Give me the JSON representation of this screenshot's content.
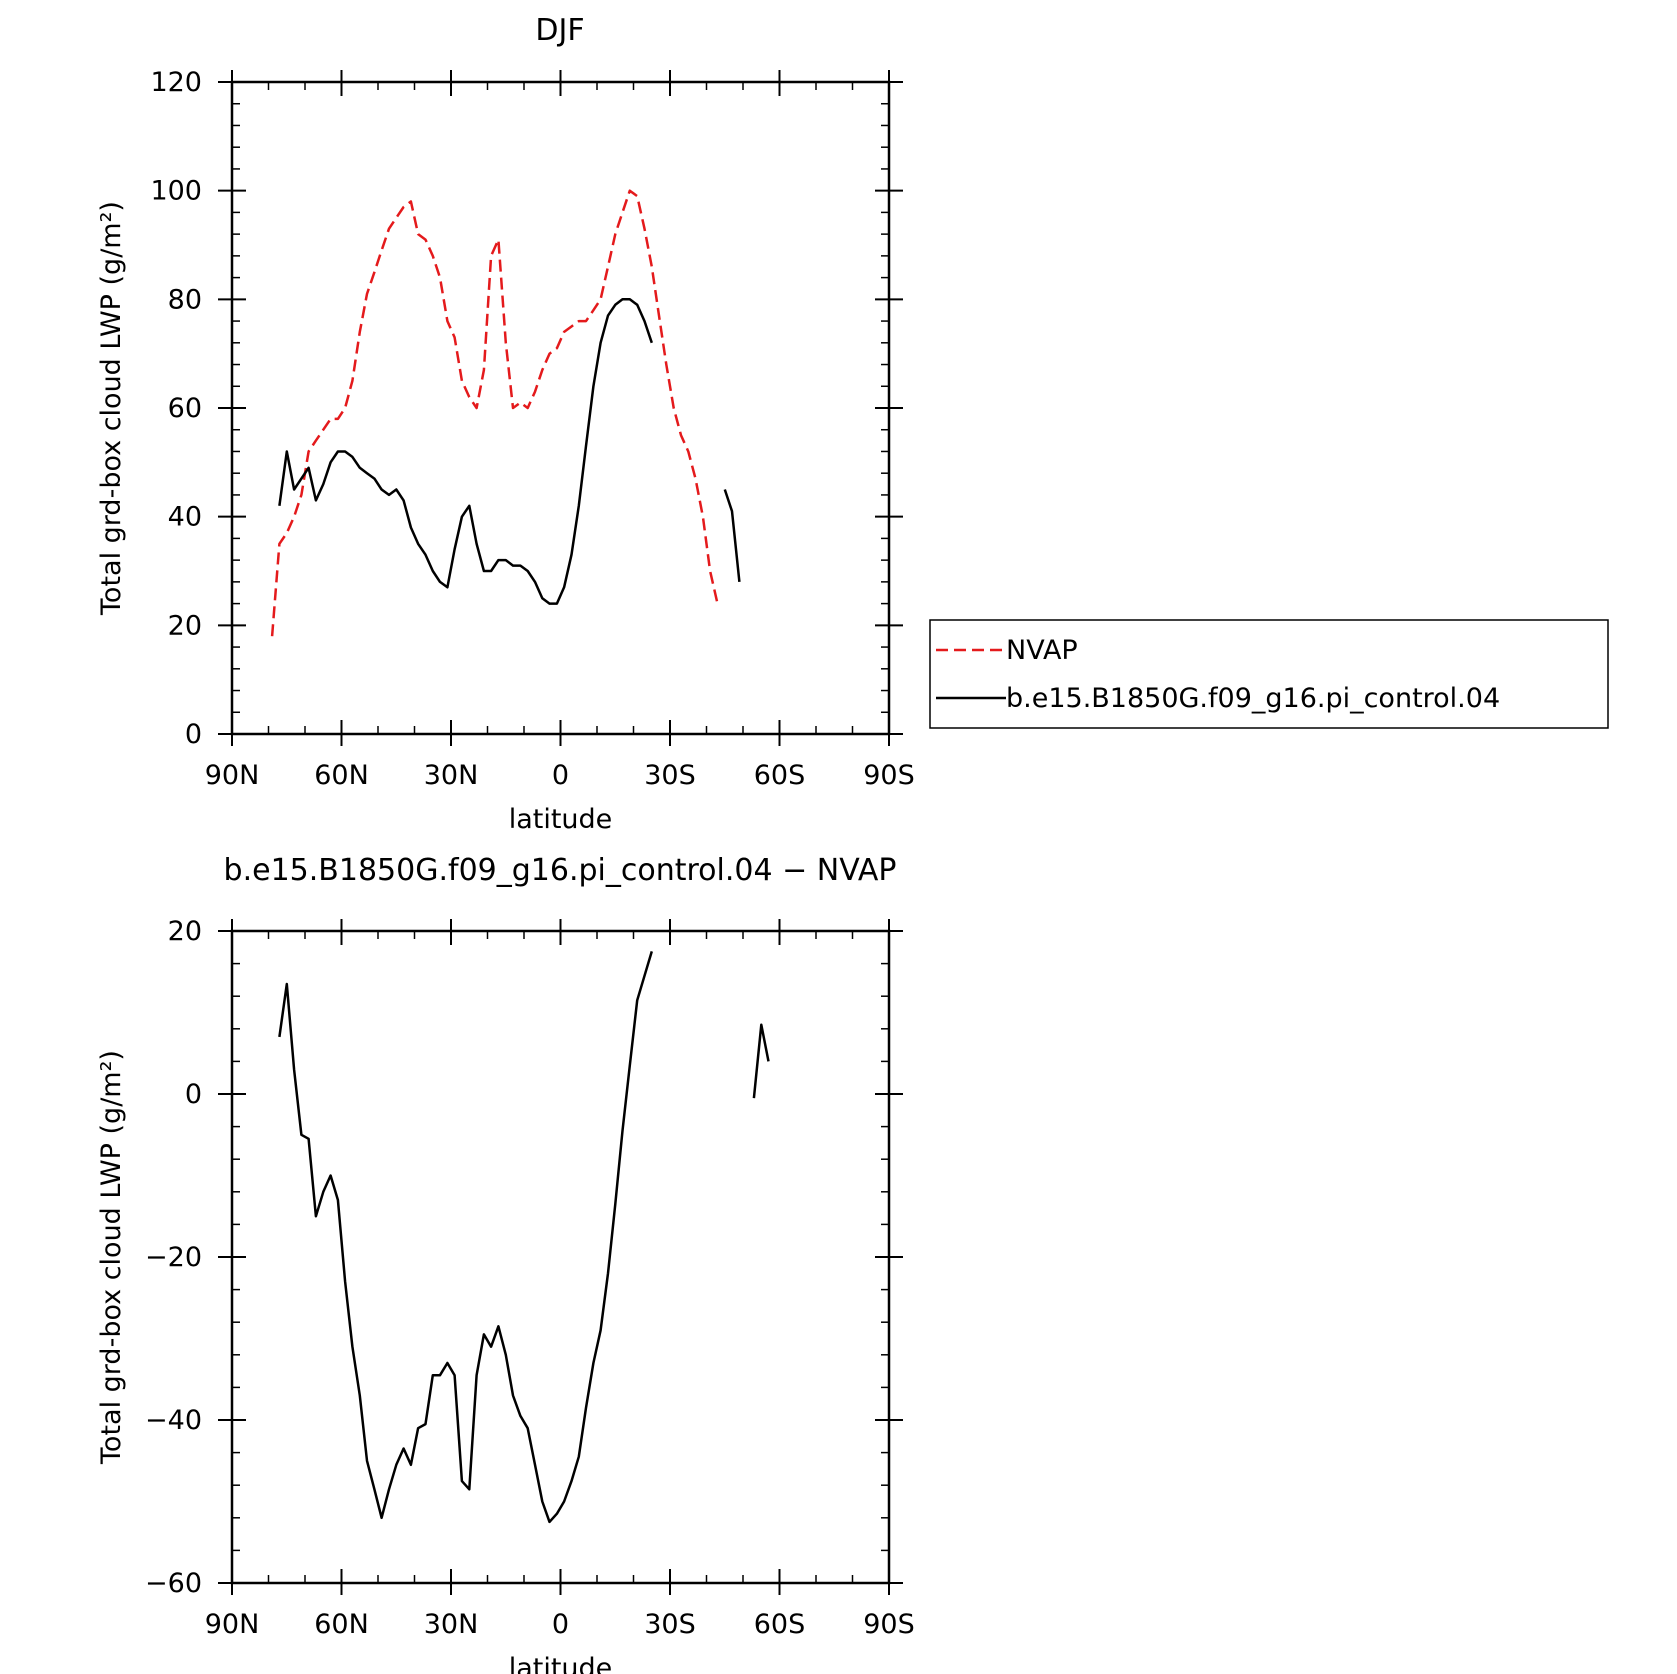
{
  "chart_data": [
    {
      "type": "line",
      "title": "DJF",
      "xlabel": "latitude",
      "ylabel": "Total grd-box cloud LWP (g/m²)",
      "xlim": [
        90,
        -90
      ],
      "ylim": [
        0,
        120
      ],
      "x_ticks": [
        90,
        60,
        30,
        0,
        -30,
        -60,
        -90
      ],
      "x_tick_labels": [
        "90N",
        "60N",
        "30N",
        "0",
        "30S",
        "60S",
        "90S"
      ],
      "y_ticks": [
        0,
        20,
        40,
        60,
        80,
        100,
        120
      ],
      "y_tick_labels": [
        "0",
        "20",
        "40",
        "60",
        "80",
        "100",
        "120"
      ],
      "legend": {
        "placement": "right",
        "entries": [
          "NVAP",
          "b.e15.B1850G.f09_g16.pi_control.04"
        ]
      },
      "series": [
        {
          "name": "NVAP",
          "color": "#e41a1c",
          "dash": "dashed",
          "x": [
            79,
            77,
            75,
            73,
            71,
            69,
            67,
            65,
            63,
            61,
            59,
            57,
            55,
            53,
            51,
            49,
            47,
            45,
            43,
            41,
            39,
            37,
            35,
            33,
            31,
            29,
            27,
            25,
            23,
            21,
            19,
            17,
            15,
            13,
            11,
            9,
            7,
            5,
            3,
            1,
            -1,
            -3,
            -5,
            -7,
            -9,
            -11,
            -13,
            -15,
            -17,
            -19,
            -21,
            -23,
            -25,
            -27,
            -29,
            -31,
            -33,
            -35,
            -37,
            -39,
            -41,
            -43,
            -45,
            -47,
            -49,
            -51,
            -53,
            -55,
            -57,
            -59,
            -61,
            -63,
            -65,
            -67,
            -69,
            -71,
            -73,
            -75,
            -77
          ],
          "y": [
            18,
            35,
            37,
            40,
            44,
            52,
            54,
            56,
            58,
            58,
            60,
            65,
            74,
            81,
            85,
            89,
            93,
            95,
            97,
            98,
            92,
            91,
            88,
            84,
            76,
            73,
            65,
            62,
            60,
            67,
            88,
            91,
            72,
            60,
            61,
            60,
            63,
            67,
            70,
            71,
            74,
            75,
            76,
            76,
            78,
            80,
            86,
            92,
            96,
            100,
            99,
            93,
            86,
            77,
            68,
            60,
            55,
            52,
            47,
            40,
            30,
            24,
            null,
            null,
            null,
            null,
            null,
            null,
            null,
            null,
            null,
            null,
            null,
            null,
            null,
            null,
            null,
            null,
            null
          ]
        },
        {
          "name": "b.e15.B1850G.f09_g16.pi_control.04",
          "color": "#000000",
          "dash": "solid",
          "x": [
            77,
            75,
            73,
            71,
            69,
            67,
            65,
            63,
            61,
            59,
            57,
            55,
            53,
            51,
            49,
            47,
            45,
            43,
            41,
            39,
            37,
            35,
            33,
            31,
            29,
            27,
            25,
            23,
            21,
            19,
            17,
            15,
            13,
            11,
            9,
            7,
            5,
            3,
            1,
            -1,
            -3,
            -5,
            -7,
            -9,
            -11,
            -13,
            -15,
            -17,
            -19,
            -21,
            -23,
            -25,
            -27,
            -29,
            -31,
            -33,
            -35,
            -37,
            -39,
            -41,
            -43,
            -45,
            -47,
            -49,
            -51,
            -53,
            -55,
            -57,
            -59,
            -61,
            -63,
            -65,
            -67,
            -69,
            -71,
            -73,
            -75,
            -77
          ],
          "y": [
            42,
            52,
            45,
            47,
            49,
            43,
            46,
            50,
            52,
            52,
            51,
            49,
            48,
            47,
            45,
            44,
            45,
            43,
            38,
            35,
            33,
            30,
            28,
            27,
            34,
            40,
            42,
            35,
            30,
            30,
            32,
            32,
            31,
            31,
            30,
            28,
            25,
            24,
            24,
            27,
            33,
            42,
            53,
            64,
            72,
            77,
            79,
            80,
            80,
            79,
            76,
            72,
            null,
            null,
            null,
            null,
            null,
            null,
            null,
            null,
            null,
            45,
            41,
            28,
            null,
            null,
            null,
            null,
            null,
            null,
            null,
            null,
            null,
            null,
            null,
            null,
            null,
            null
          ]
        }
      ]
    },
    {
      "type": "line",
      "title": "b.e15.B1850G.f09_g16.pi_control.04 − NVAP",
      "xlabel": "latitude",
      "ylabel": "Total grd-box cloud LWP (g/m²)",
      "xlim": [
        90,
        -90
      ],
      "ylim": [
        -60,
        20
      ],
      "x_ticks": [
        90,
        60,
        30,
        0,
        -30,
        -60,
        -90
      ],
      "x_tick_labels": [
        "90N",
        "60N",
        "30N",
        "0",
        "30S",
        "60S",
        "90S"
      ],
      "y_ticks": [
        -60,
        -40,
        -20,
        0,
        20
      ],
      "y_tick_labels": [
        "−60",
        "−40",
        "−20",
        "0",
        "20"
      ],
      "series": [
        {
          "color": "#000000",
          "dash": "solid",
          "x": [
            77,
            75,
            73,
            71,
            69,
            67,
            65,
            63,
            61,
            59,
            57,
            55,
            53,
            51,
            49,
            47,
            45,
            43,
            41,
            39,
            37,
            35,
            33,
            31,
            29,
            27,
            25,
            23,
            21,
            19,
            17,
            15,
            13,
            11,
            9,
            7,
            5,
            3,
            1,
            -1,
            -3,
            -5,
            -7,
            -9,
            -11,
            -13,
            -15,
            -17,
            -19,
            -21,
            -23,
            -25,
            -27,
            -29,
            -31,
            -33,
            -35,
            -37,
            -39,
            -41,
            -43,
            -45,
            -47,
            -49,
            -51,
            -53,
            -55,
            -57,
            -59,
            -61,
            -63,
            -65,
            -67,
            -69,
            -71,
            -73,
            -75,
            -77
          ],
          "y": [
            7,
            13.5,
            3,
            -5,
            -5.5,
            -15,
            -12,
            -10,
            -13,
            -23,
            -31,
            -37,
            -45,
            -48.5,
            -52,
            -48.5,
            -45.5,
            -43.5,
            -45.5,
            -41,
            -40.5,
            -34.5,
            -34.5,
            -33,
            -34.5,
            -47.5,
            -48.5,
            -34.5,
            -29.5,
            -31,
            -28.5,
            -32,
            -37,
            -39.5,
            -41,
            -45.5,
            -50,
            -52.5,
            -51.5,
            -50,
            -47.5,
            -44.5,
            -38.5,
            -33,
            -29,
            -22,
            -13.5,
            -4.5,
            3.5,
            11.5,
            14.5,
            17.5,
            null,
            null,
            null,
            null,
            null,
            null,
            null,
            null,
            null,
            null,
            null,
            null,
            null,
            -0.5,
            8.5,
            4,
            null,
            null,
            null,
            null,
            null,
            null,
            null,
            null,
            null,
            null
          ]
        }
      ]
    }
  ]
}
